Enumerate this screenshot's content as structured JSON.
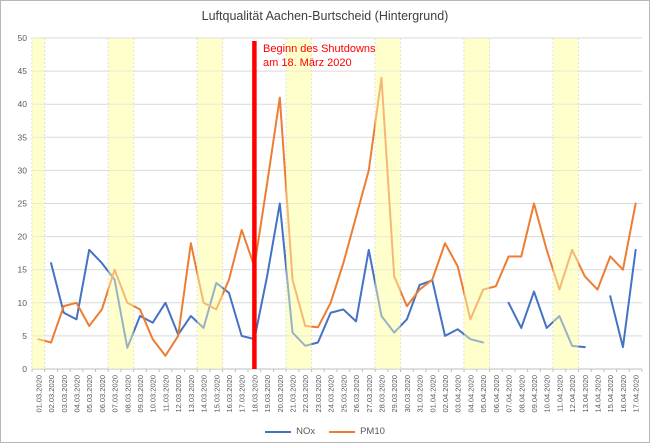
{
  "chart_data": {
    "type": "line",
    "title": "Luftqualität Aachen-Burtscheid (Hintergrund)",
    "xlabel": "",
    "ylabel": "",
    "ylim": [
      0,
      50
    ],
    "y_tick_step": 5,
    "grid": true,
    "legend_position": "bottom",
    "categories": [
      "01.03.2020",
      "02.03.2020",
      "03.03.2020",
      "04.03.2020",
      "05.03.2020",
      "06.03.2020",
      "07.03.2020",
      "08.03.2020",
      "09.03.2020",
      "10.03.2020",
      "11.03.2020",
      "12.03.2020",
      "13.03.2020",
      "14.03.2020",
      "15.03.2020",
      "16.03.2020",
      "17.03.2020",
      "18.03.2020",
      "19.03.2020",
      "20.03.2020",
      "21.03.2020",
      "22.03.2020",
      "23.03.2020",
      "24.03.2020",
      "25.03.2020",
      "26.03.2020",
      "27.03.2020",
      "28.03.2020",
      "29.03.2020",
      "30.03.2020",
      "31.03.2020",
      "01.04.2020",
      "02.04.2020",
      "03.04.2020",
      "04.04.2020",
      "05.04.2020",
      "06.04.2020",
      "07.04.2020",
      "08.04.2020",
      "09.04.2020",
      "10.04.2020",
      "11.04.2020",
      "12.04.2020",
      "13.04.2020",
      "14.04.2020",
      "15.04.2020",
      "16.04.2020",
      "17.04.2020"
    ],
    "series": [
      {
        "name": "NOx",
        "color": "#4472C4",
        "values": [
          null,
          16,
          8.5,
          7.5,
          18,
          16,
          13.5,
          3.2,
          8,
          7,
          10,
          5.2,
          8,
          6.2,
          13,
          11.5,
          5,
          4.5,
          14,
          25,
          5.5,
          3.5,
          4,
          8.5,
          9,
          7.2,
          18,
          8,
          5.5,
          7.5,
          12.7,
          13.4,
          5,
          6,
          4.5,
          4,
          null,
          10,
          6.2,
          11.7,
          6.2,
          8,
          3.5,
          3.3,
          null,
          11,
          3.3,
          18
        ]
      },
      {
        "name": "PM10",
        "color": "#ED7D31",
        "values": [
          4.5,
          4,
          9.5,
          10,
          6.5,
          9,
          15,
          10,
          9,
          4.5,
          2,
          5,
          19,
          10,
          9,
          13.5,
          21,
          15.5,
          28,
          41,
          13.5,
          6.5,
          6.3,
          10,
          16,
          23,
          30,
          44,
          14,
          9.5,
          12,
          13.5,
          19,
          15.5,
          7.5,
          12,
          12.5,
          17,
          17,
          25,
          18,
          12,
          18,
          14,
          12,
          17,
          15,
          25
        ]
      }
    ],
    "weekend_bands": [
      [
        0,
        0
      ],
      [
        6,
        7
      ],
      [
        13,
        14
      ],
      [
        20,
        21
      ],
      [
        27,
        28
      ],
      [
        34,
        35
      ],
      [
        41,
        42
      ]
    ],
    "weekend_band_color": "#FFFFCC",
    "annotation": {
      "line1": "Beginn des Shutdowns",
      "line2": "am 18. März 2020",
      "color": "#FF0000",
      "marker_category": "18.03.2020",
      "marker_category_index": 17,
      "marker_color": "#FF0000"
    },
    "axis_label_color": "#595959",
    "gridline_color": "#D9D9D9",
    "y_tick_labels": [
      "0",
      "5",
      "10",
      "15",
      "20",
      "25",
      "30",
      "35",
      "40",
      "45",
      "50"
    ]
  }
}
